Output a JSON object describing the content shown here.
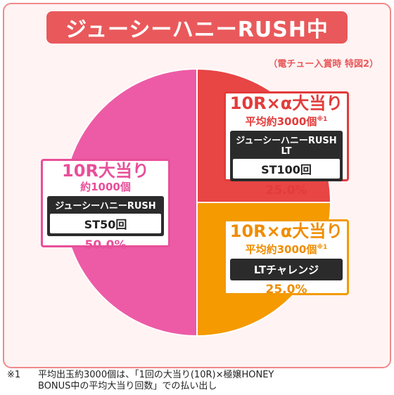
{
  "title": "ジューシーハニーRUSH中",
  "subnote": "（電チュー入賞時 特図2）",
  "chart_data": {
    "type": "pie",
    "title": "ジューシーハニーRUSH中",
    "slices": [
      {
        "key": "left",
        "head": "10R大当り",
        "sub": "約1000個",
        "sub_mark": "",
        "mode_label": "ジューシーハニーRUSH",
        "mode_inner": "ST50回",
        "percent_label": "50.0%",
        "value": 50.0,
        "color": "#ed5ba6"
      },
      {
        "key": "top-right",
        "head": "10R×α大当り",
        "sub": "平均約3000個",
        "sub_mark": "※1",
        "mode_label": "ジューシーハニーRUSH LT",
        "mode_inner": "ST100回",
        "percent_label": "25.0%",
        "value": 25.0,
        "color": "#e84545"
      },
      {
        "key": "bottom-right",
        "head": "10R×α大当り",
        "sub": "平均約3000個",
        "sub_mark": "※1",
        "mode_label": "LTチャレンジ",
        "mode_inner": "",
        "percent_label": "25.0%",
        "value": 25.0,
        "color": "#f59a00"
      }
    ]
  },
  "footnote": {
    "mark": "※1",
    "line1": "平均出玉約3000個は、「1回の大当り(10R)×極嬢HONEY",
    "line2": "BONUS中の平均大当り回数」での払い出し"
  }
}
